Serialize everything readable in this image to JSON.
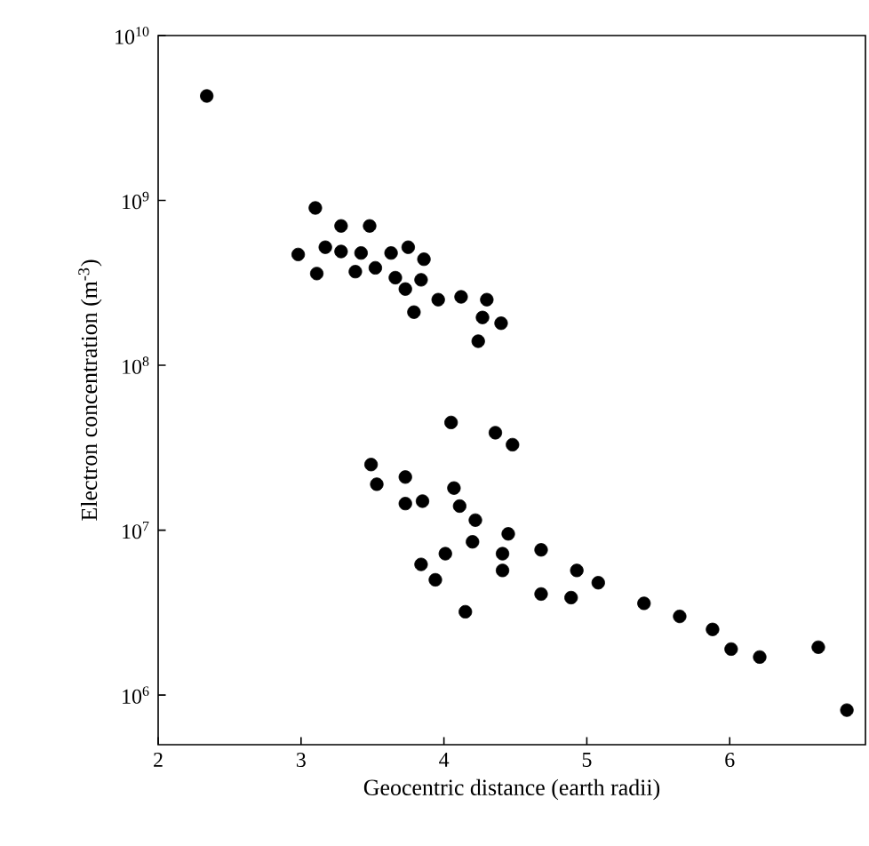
{
  "chart_data": {
    "type": "scatter",
    "xlabel": "Geocentric distance (earth radii)",
    "ylabel": "Electron concentration (m$^{-3}$)",
    "log": "y",
    "marker": "circle",
    "color": "#000000",
    "xlim": [
      2,
      6.95
    ],
    "xticks": [
      2,
      3,
      4,
      5,
      6
    ],
    "ylim": [
      500000,
      10000000000
    ],
    "yticks": [
      {
        "value": 1000000,
        "label": "10$^{6}$"
      },
      {
        "value": 10000000,
        "label": "10$^{7}$"
      },
      {
        "value": 100000000,
        "label": "10$^{8}$"
      },
      {
        "value": 1000000000,
        "label": "10$^{9}$"
      },
      {
        "value": 10000000000,
        "label": "10$^{10}$"
      }
    ],
    "x": [
      2.34,
      3.1,
      3.28,
      3.48,
      2.98,
      3.17,
      3.28,
      3.42,
      3.63,
      3.75,
      3.86,
      3.11,
      3.38,
      3.52,
      3.66,
      3.84,
      3.73,
      3.79,
      3.96,
      4.12,
      4.3,
      4.27,
      4.4,
      4.24,
      4.05,
      4.36,
      4.48,
      3.49,
      3.53,
      3.73,
      3.73,
      3.85,
      3.84,
      3.94,
      4.07,
      4.11,
      4.22,
      4.2,
      4.45,
      4.01,
      4.41,
      4.41,
      4.15,
      4.68,
      4.68,
      4.89,
      4.93,
      5.08,
      5.4,
      5.65,
      5.88,
      6.01,
      6.21,
      6.62,
      6.82
    ],
    "values": [
      4300000000,
      900000000,
      700000000,
      700000000,
      470000000,
      520000000,
      490000000,
      480000000,
      480000000,
      520000000,
      440000000,
      360000000,
      370000000,
      390000000,
      340000000,
      330000000,
      290000000,
      210000000,
      250000000,
      260000000,
      250000000,
      195000000,
      180000000,
      140000000,
      45000000,
      39000000,
      33000000,
      25000000,
      19000000,
      21000000,
      14500000,
      15000000,
      6200000,
      5000000,
      18000000,
      14000000,
      11500000,
      8500000,
      9500000,
      7200000,
      7200000,
      5700000,
      3200000,
      7600000,
      4100000,
      3900000,
      5700000,
      4800000,
      3600000,
      3000000,
      2500000,
      1900000,
      1700000,
      1950000,
      810000
    ]
  }
}
